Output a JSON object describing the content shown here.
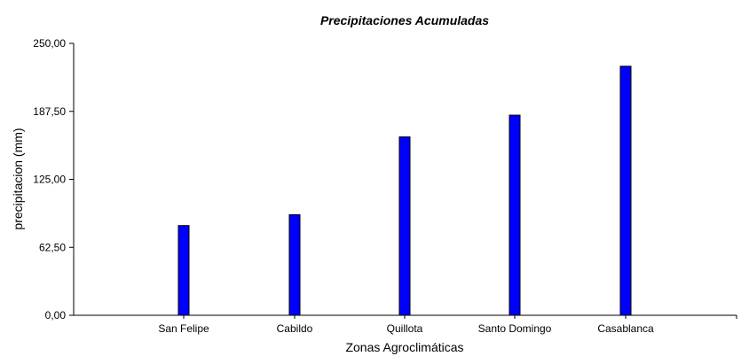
{
  "chart_data": {
    "type": "bar",
    "title": "Precipitaciones Acumuladas",
    "xlabel": "Zonas Agroclimáticas",
    "ylabel": "precipitacion (mm)",
    "categories": [
      "San Felipe",
      "Cabildo",
      "Quillota",
      "Santo Domingo",
      "Casablanca"
    ],
    "values": [
      82.5,
      92.5,
      164,
      184,
      229
    ],
    "ylim": [
      0,
      250
    ],
    "yticks": [
      "0,00",
      "62,50",
      "125,00",
      "187,50",
      "250,00"
    ],
    "ytick_values": [
      0,
      62.5,
      125,
      187.5,
      250
    ],
    "grid": false,
    "legend": "none",
    "bar_color": "#0000ff",
    "bar_edge_color": "#000000"
  }
}
